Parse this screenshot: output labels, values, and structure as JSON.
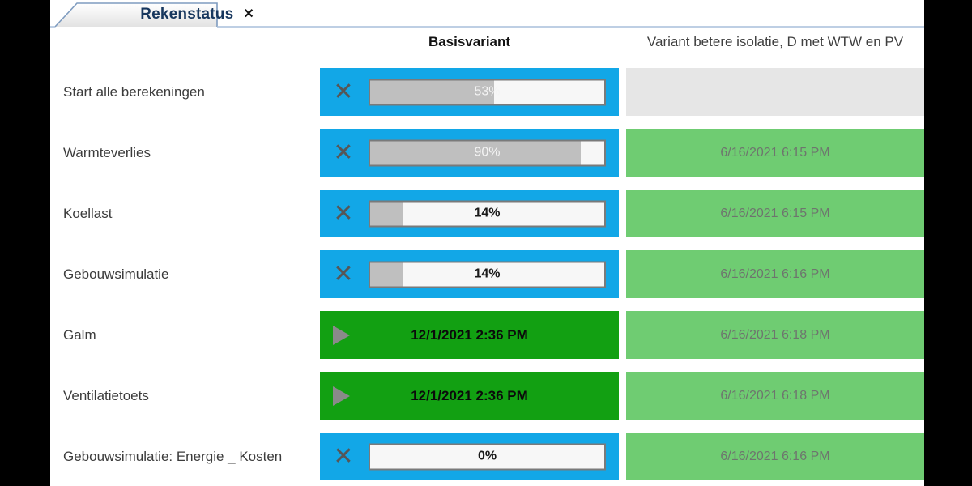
{
  "tab": {
    "title": "Rekenstatus",
    "close": "✕"
  },
  "headers": {
    "basis": "Basisvariant",
    "variant": "Variant betere isolatie, D met WTW en PV"
  },
  "icons": {
    "cancel": "✕",
    "play": "play-triangle"
  },
  "colors": {
    "running_bg": "#12A7E7",
    "done_bg": "#12A012",
    "variant_done_bg": "#6FCC72",
    "variant_pending_bg": "#E6E6E6",
    "bar_fill": "#BFBFBF",
    "bar_bg": "#F7F7F7",
    "bar_border": "#7A7A7A",
    "tab_border": "#7E9BBF",
    "strip_line": "#A9BFDB",
    "tab_text": "#17375E"
  },
  "rows": [
    {
      "label": "Start alle berekeningen",
      "basis": {
        "status": "running",
        "percent": 53,
        "percent_label": "53%",
        "label_tone": "light"
      },
      "variant": {
        "status": "pending",
        "date": ""
      }
    },
    {
      "label": "Warmteverlies",
      "basis": {
        "status": "running",
        "percent": 90,
        "percent_label": "90%",
        "label_tone": "light"
      },
      "variant": {
        "status": "done",
        "date": "6/16/2021 6:15 PM"
      }
    },
    {
      "label": "Koellast",
      "basis": {
        "status": "running",
        "percent": 14,
        "percent_label": "14%",
        "label_tone": "dark"
      },
      "variant": {
        "status": "done",
        "date": "6/16/2021 6:15 PM"
      }
    },
    {
      "label": "Gebouwsimulatie",
      "basis": {
        "status": "running",
        "percent": 14,
        "percent_label": "14%",
        "label_tone": "dark"
      },
      "variant": {
        "status": "done",
        "date": "6/16/2021 6:16 PM"
      }
    },
    {
      "label": "Galm",
      "basis": {
        "status": "done",
        "date": "12/1/2021 2:36 PM"
      },
      "variant": {
        "status": "done",
        "date": "6/16/2021 6:18 PM"
      }
    },
    {
      "label": "Ventilatietoets",
      "basis": {
        "status": "done",
        "date": "12/1/2021 2:36 PM"
      },
      "variant": {
        "status": "done",
        "date": "6/16/2021 6:18 PM"
      }
    },
    {
      "label": "Gebouwsimulatie: Energie _ Kosten",
      "basis": {
        "status": "running",
        "percent": 0,
        "percent_label": "0%",
        "label_tone": "dark"
      },
      "variant": {
        "status": "done",
        "date": "6/16/2021 6:16 PM"
      }
    }
  ]
}
